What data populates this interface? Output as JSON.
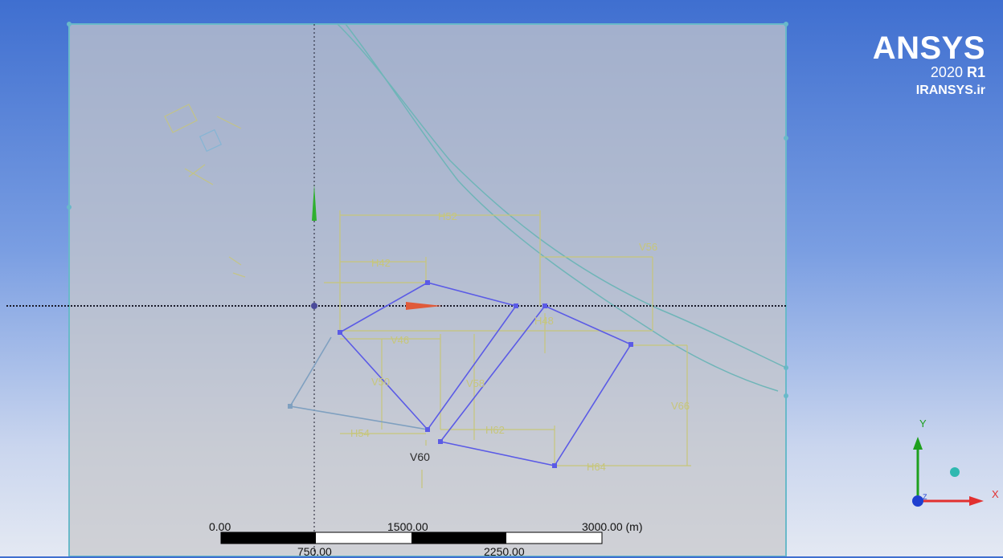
{
  "brand": {
    "name": "ANSYS",
    "version": "2020",
    "release": "R1",
    "site": "IRANSYS.ir"
  },
  "dimensions": {
    "h52": "H52",
    "h42": "H42",
    "h48": "H48",
    "h62": "H62",
    "h64": "H64",
    "h54": "H54",
    "v56": "V56",
    "v46": "V46",
    "v50": "V50",
    "v58": "V58",
    "v66": "V66",
    "v60": "V60"
  },
  "scale_bar": {
    "top_labels": [
      "0.00",
      "1500.00",
      "3000.00 (m)"
    ],
    "bottom_labels": [
      "750.00",
      "2250.00"
    ]
  },
  "triad": {
    "y_label": "Y",
    "x_label": "X",
    "z_label": "Z"
  },
  "colors": {
    "sketch": "#5b5be6",
    "dimension": "#c7c67a",
    "plane": "#6fb5c5",
    "x_axis": "#e23030",
    "y_axis": "#1ea01e",
    "z_axis": "#1f3fd0"
  }
}
